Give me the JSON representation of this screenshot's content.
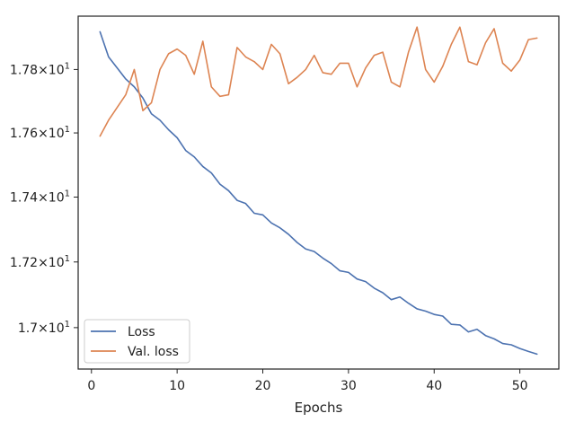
{
  "chart_data": {
    "type": "line",
    "xlabel": "Epochs",
    "ylabel": "",
    "xlim": [
      -1.55,
      54.55
    ],
    "ylim": [
      16.875,
      17.97
    ],
    "yscale": "log",
    "grid": false,
    "legend_position": "lower-left",
    "x_ticks": [
      {
        "value": 0,
        "label": "0"
      },
      {
        "value": 10,
        "label": "10"
      },
      {
        "value": 20,
        "label": "20"
      },
      {
        "value": 30,
        "label": "30"
      },
      {
        "value": 40,
        "label": "40"
      },
      {
        "value": 50,
        "label": "50"
      }
    ],
    "y_ticks": [
      {
        "value": 17.0,
        "mantissa": "1.7",
        "exponent": "1"
      },
      {
        "value": 17.2,
        "mantissa": "1.72",
        "exponent": "1"
      },
      {
        "value": 17.4,
        "mantissa": "1.74",
        "exponent": "1"
      },
      {
        "value": 17.6,
        "mantissa": "1.76",
        "exponent": "1"
      },
      {
        "value": 17.8,
        "mantissa": "1.78",
        "exponent": "1"
      }
    ],
    "x": [
      1,
      2,
      3,
      4,
      5,
      6,
      7,
      8,
      9,
      10,
      11,
      12,
      13,
      14,
      15,
      16,
      17,
      18,
      19,
      20,
      21,
      22,
      23,
      24,
      25,
      26,
      27,
      28,
      29,
      30,
      31,
      32,
      33,
      34,
      35,
      36,
      37,
      38,
      39,
      40,
      41,
      42,
      43,
      44,
      45,
      46,
      47,
      48,
      49,
      50,
      51,
      52
    ],
    "series": [
      {
        "name": "Loss",
        "color": "#4c72b0",
        "values": [
          17.92,
          17.84,
          17.805,
          17.77,
          17.745,
          17.71,
          17.66,
          17.64,
          17.61,
          17.585,
          17.545,
          17.525,
          17.495,
          17.475,
          17.44,
          17.42,
          17.39,
          17.38,
          17.35,
          17.345,
          17.32,
          17.305,
          17.285,
          17.26,
          17.24,
          17.232,
          17.212,
          17.195,
          17.173,
          17.168,
          17.148,
          17.14,
          17.12,
          17.106,
          17.085,
          17.093,
          17.074,
          17.057,
          17.05,
          17.04,
          17.035,
          17.01,
          17.008,
          16.987,
          16.995,
          16.976,
          16.966,
          16.952,
          16.948,
          16.937,
          16.928,
          16.92
        ]
      },
      {
        "name": "Val. loss",
        "color": "#dd8452",
        "values": [
          17.59,
          17.64,
          17.68,
          17.72,
          17.8,
          17.67,
          17.695,
          17.8,
          17.85,
          17.865,
          17.845,
          17.785,
          17.89,
          17.745,
          17.715,
          17.72,
          17.87,
          17.84,
          17.825,
          17.8,
          17.88,
          17.85,
          17.755,
          17.775,
          17.8,
          17.845,
          17.79,
          17.785,
          17.82,
          17.82,
          17.745,
          17.805,
          17.845,
          17.855,
          17.76,
          17.745,
          17.855,
          17.935,
          17.8,
          17.76,
          17.81,
          17.88,
          17.935,
          17.825,
          17.815,
          17.885,
          17.93,
          17.82,
          17.795,
          17.83,
          17.895,
          17.9
        ]
      }
    ]
  }
}
